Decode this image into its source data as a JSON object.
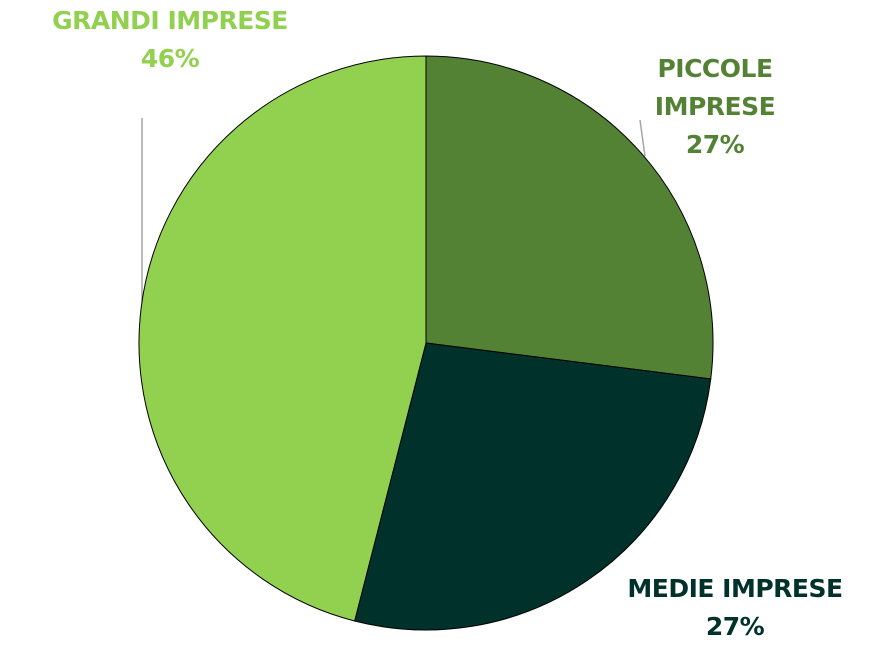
{
  "chart_data": {
    "type": "pie",
    "categories": [
      "PICCOLE IMPRESE",
      "MEDIE IMPRESE",
      "GRANDI IMPRESE"
    ],
    "values": [
      27,
      27,
      46
    ],
    "value_labels": [
      "27%",
      "27%",
      "46%"
    ],
    "colors": [
      "#548235",
      "#00312a",
      "#92d050"
    ]
  }
}
